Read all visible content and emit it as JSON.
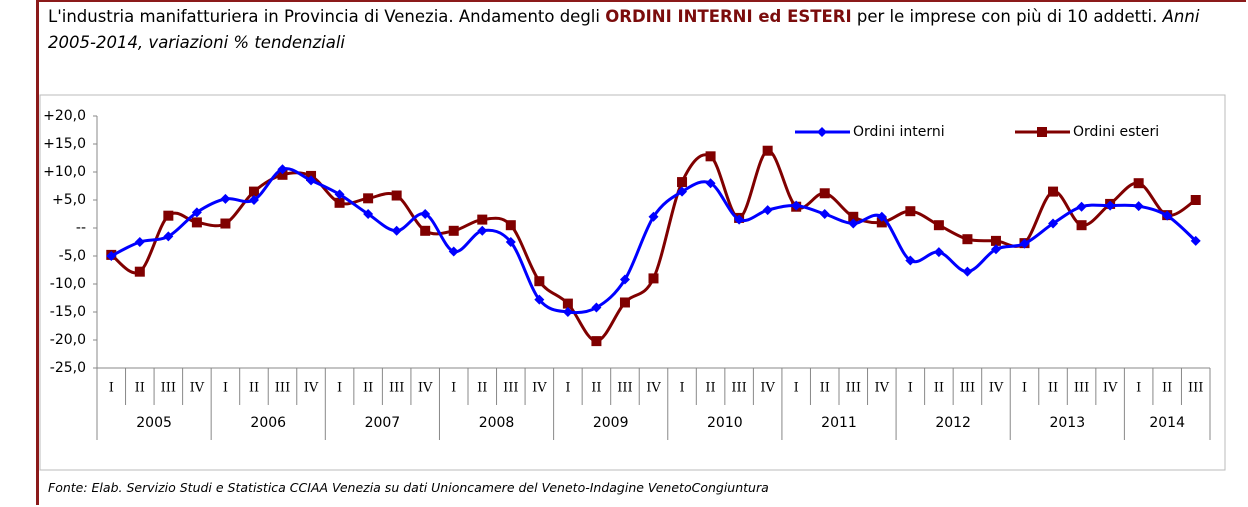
{
  "chart_data": {
    "type": "line",
    "title_parts": [
      {
        "text": "L'industria manifatturiera in Provincia di Venezia. Andamento degli ",
        "style": "normal"
      },
      {
        "text": "ORDINI INTERNI ed ESTERI",
        "style": "bold"
      },
      {
        "text": " per le imprese con più di 10 addetti. ",
        "style": "normal"
      },
      {
        "text": "Anni 2005-2014, variazioni % tendenziali",
        "style": "italic"
      }
    ],
    "categories": [
      "I",
      "II",
      "III",
      "IV",
      "I",
      "II",
      "III",
      "IV",
      "I",
      "II",
      "III",
      "IV",
      "I",
      "II",
      "III",
      "IV",
      "I",
      "II",
      "III",
      "IV",
      "I",
      "II",
      "III",
      "IV",
      "I",
      "II",
      "III",
      "IV",
      "I",
      "II",
      "III",
      "IV",
      "I",
      "II",
      "III",
      "IV",
      "I",
      "II",
      "III"
    ],
    "years": [
      "2005",
      "2006",
      "2007",
      "2008",
      "2009",
      "2010",
      "2011",
      "2012",
      "2013",
      "2014"
    ],
    "series": [
      {
        "name": "Ordini interni",
        "color": "#0000ff",
        "marker": "diamond",
        "values": [
          -5.0,
          -2.5,
          -1.5,
          2.8,
          5.2,
          5.0,
          10.5,
          8.5,
          6.0,
          2.5,
          -0.5,
          2.5,
          -4.2,
          -0.5,
          -2.5,
          -12.8,
          -15.0,
          -14.2,
          -9.2,
          2.0,
          6.5,
          8.0,
          1.5,
          3.2,
          4.0,
          2.5,
          0.8,
          2.0,
          -5.8,
          -4.3,
          -7.8,
          -3.8,
          -2.8,
          0.8,
          3.8,
          4.0,
          3.9,
          2.2,
          -2.3
        ]
      },
      {
        "name": "Ordini esteri",
        "color": "#800000",
        "marker": "square",
        "values": [
          -4.8,
          -7.8,
          2.2,
          1.0,
          0.8,
          6.5,
          9.5,
          9.3,
          4.5,
          5.3,
          5.8,
          -0.5,
          -0.5,
          1.5,
          0.5,
          -9.5,
          -13.5,
          -20.2,
          -13.3,
          -9.0,
          8.2,
          12.8,
          1.8,
          13.8,
          3.8,
          6.2,
          2.0,
          1.0,
          3.0,
          0.5,
          -2.0,
          -2.3,
          -2.7,
          6.5,
          0.5,
          4.3,
          8.0,
          2.3,
          5.0
        ]
      }
    ],
    "ylim": [
      -25,
      20
    ],
    "yticks": [
      {
        "value": 20,
        "label": "+20,0"
      },
      {
        "value": 15,
        "label": "+15,0"
      },
      {
        "value": 10,
        "label": "+10,0"
      },
      {
        "value": 5,
        "label": "+5,0"
      },
      {
        "value": 0,
        "label": "--"
      },
      {
        "value": -5,
        "label": "-5,0"
      },
      {
        "value": -10,
        "label": "-10,0"
      },
      {
        "value": -15,
        "label": "-15,0"
      },
      {
        "value": -20,
        "label": "-20,0"
      },
      {
        "value": -25,
        "label": "-25,0"
      }
    ],
    "legend": "top-right",
    "source": "Fonte: Elab. Servizio Studi e Statistica CCIAA Venezia su dati Unioncamere del Veneto-Indagine VenetoCongiuntura"
  }
}
